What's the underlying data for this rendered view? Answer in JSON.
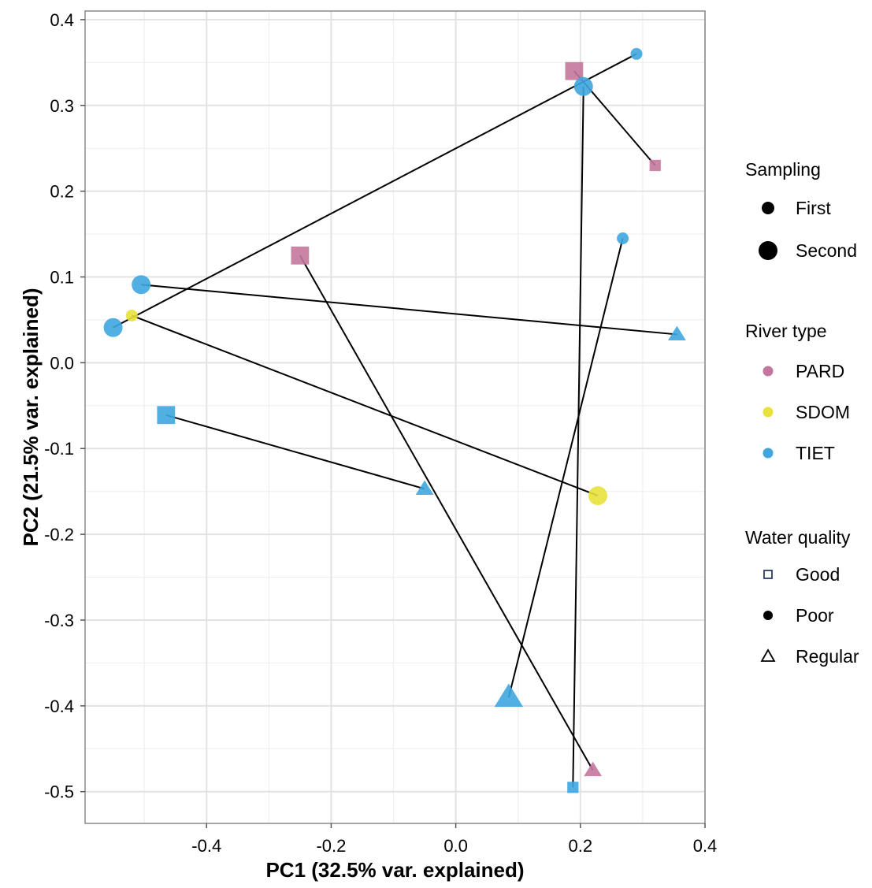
{
  "chart_data": {
    "type": "scatter",
    "xlabel": "PC1 (32.5% var. explained)",
    "ylabel": "PC2 (21.5% var. explained)",
    "xlim": [
      -0.595,
      0.4
    ],
    "ylim": [
      -0.537,
      0.41
    ],
    "x_ticks": [
      -0.4,
      -0.2,
      0.0,
      0.2,
      0.4
    ],
    "x_tick_labels": [
      "-0.4",
      "-0.2",
      "0.0",
      "0.2",
      "0.4"
    ],
    "y_ticks": [
      0.4,
      0.3,
      0.2,
      0.1,
      0.0,
      -0.1,
      -0.2,
      -0.3,
      -0.4,
      -0.5
    ],
    "y_tick_labels": [
      "0.4",
      "0.3",
      "0.2",
      "0.1",
      "0.0",
      "-0.1",
      "-0.2",
      "-0.3",
      "-0.4",
      "-0.5"
    ],
    "grid": true,
    "colors": {
      "PARD": "#c3779c",
      "SDOM": "#e8e23a",
      "TIET": "#3fa6df",
      "line": "#000000",
      "grid_major": "#e2e2e2",
      "grid_minor": "#efefef",
      "panel_border": "#8a8a8a"
    },
    "points": [
      {
        "x": 0.29,
        "y": 0.36,
        "river": "TIET",
        "quality": "Poor",
        "sampling": "First"
      },
      {
        "x": 0.19,
        "y": 0.34,
        "river": "PARD",
        "quality": "Good",
        "sampling": "Second"
      },
      {
        "x": 0.205,
        "y": 0.322,
        "river": "TIET",
        "quality": "Poor",
        "sampling": "Second"
      },
      {
        "x": 0.32,
        "y": 0.23,
        "river": "PARD",
        "quality": "Good",
        "sampling": "First"
      },
      {
        "x": 0.268,
        "y": 0.145,
        "river": "TIET",
        "quality": "Poor",
        "sampling": "First"
      },
      {
        "x": -0.25,
        "y": 0.125,
        "river": "PARD",
        "quality": "Good",
        "sampling": "Second"
      },
      {
        "x": -0.505,
        "y": 0.091,
        "river": "TIET",
        "quality": "Poor",
        "sampling": "Second"
      },
      {
        "x": -0.52,
        "y": 0.055,
        "river": "SDOM",
        "quality": "Poor",
        "sampling": "First"
      },
      {
        "x": -0.55,
        "y": 0.041,
        "river": "TIET",
        "quality": "Poor",
        "sampling": "Second"
      },
      {
        "x": 0.355,
        "y": 0.033,
        "river": "TIET",
        "quality": "Regular",
        "sampling": "First"
      },
      {
        "x": -0.465,
        "y": -0.061,
        "river": "TIET",
        "quality": "Good",
        "sampling": "Second"
      },
      {
        "x": -0.05,
        "y": -0.147,
        "river": "TIET",
        "quality": "Regular",
        "sampling": "First"
      },
      {
        "x": 0.228,
        "y": -0.155,
        "river": "SDOM",
        "quality": "Poor",
        "sampling": "Second"
      },
      {
        "x": 0.085,
        "y": -0.39,
        "river": "TIET",
        "quality": "Regular",
        "sampling": "Second"
      },
      {
        "x": 0.22,
        "y": -0.475,
        "river": "PARD",
        "quality": "Regular",
        "sampling": "First"
      },
      {
        "x": 0.188,
        "y": -0.495,
        "river": "TIET",
        "quality": "Good",
        "sampling": "First"
      }
    ],
    "segments": [
      {
        "x1": -0.55,
        "y1": 0.041,
        "x2": 0.29,
        "y2": 0.36
      },
      {
        "x1": 0.19,
        "y1": 0.34,
        "x2": 0.32,
        "y2": 0.23
      },
      {
        "x1": 0.205,
        "y1": 0.322,
        "x2": 0.188,
        "y2": -0.495
      },
      {
        "x1": -0.25,
        "y1": 0.125,
        "x2": 0.22,
        "y2": -0.475
      },
      {
        "x1": -0.505,
        "y1": 0.091,
        "x2": 0.355,
        "y2": 0.033
      },
      {
        "x1": -0.52,
        "y1": 0.055,
        "x2": 0.228,
        "y2": -0.155
      },
      {
        "x1": -0.465,
        "y1": -0.061,
        "x2": -0.05,
        "y2": -0.147
      },
      {
        "x1": 0.085,
        "y1": -0.39,
        "x2": 0.268,
        "y2": 0.145
      }
    ],
    "legend": {
      "placement": "right",
      "groups": [
        {
          "title": "Sampling",
          "kind": "size",
          "items": [
            {
              "label": "First",
              "key": "First"
            },
            {
              "label": "Second",
              "key": "Second"
            }
          ]
        },
        {
          "title": "River type",
          "kind": "color",
          "items": [
            {
              "label": "PARD",
              "key": "PARD"
            },
            {
              "label": "SDOM",
              "key": "SDOM"
            },
            {
              "label": "TIET",
              "key": "TIET"
            }
          ]
        },
        {
          "title": "Water quality",
          "kind": "shape",
          "items": [
            {
              "label": "Good",
              "key": "Good"
            },
            {
              "label": "Poor",
              "key": "Poor"
            },
            {
              "label": "Regular",
              "key": "Regular"
            }
          ]
        }
      ]
    }
  }
}
